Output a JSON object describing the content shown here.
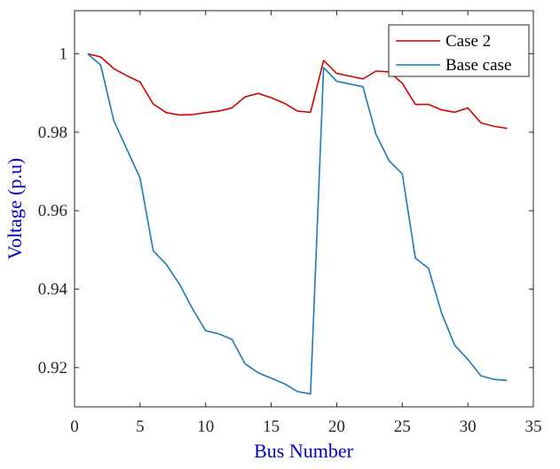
{
  "chart_data": {
    "type": "line",
    "xlabel": "Bus Number",
    "ylabel": "Voltage (p.u)",
    "xlim": [
      0,
      35
    ],
    "ylim": [
      0.91,
      1.011
    ],
    "xticks": [
      0,
      5,
      10,
      15,
      20,
      25,
      30,
      35
    ],
    "yticks": [
      0.92,
      0.94,
      0.96,
      0.98,
      1
    ],
    "ytick_labels": [
      "0.92",
      "0.94",
      "0.96",
      "0.98",
      "1"
    ],
    "grid": false,
    "legend_position": "top-right",
    "x": [
      1,
      2,
      3,
      4,
      5,
      6,
      7,
      8,
      9,
      10,
      11,
      12,
      13,
      14,
      15,
      16,
      17,
      18,
      19,
      20,
      21,
      22,
      23,
      24,
      25,
      26,
      27,
      28,
      29,
      30,
      31,
      32,
      33
    ],
    "series": [
      {
        "name": "Case 2",
        "color": "#d40000",
        "values": [
          1.0,
          0.9992,
          0.9962,
          0.9944,
          0.9928,
          0.9872,
          0.985,
          0.9844,
          0.9845,
          0.985,
          0.9854,
          0.9862,
          0.989,
          0.9899,
          0.9888,
          0.9874,
          0.9854,
          0.9851,
          0.9983,
          0.995,
          0.9943,
          0.9936,
          0.9956,
          0.9954,
          0.9925,
          0.9871,
          0.9871,
          0.9857,
          0.9851,
          0.9862,
          0.9824,
          0.9815,
          0.981
        ]
      },
      {
        "name": "Base case",
        "color": "#1a7bb5",
        "values": [
          1.0,
          0.9971,
          0.9829,
          0.9756,
          0.9683,
          0.9498,
          0.9463,
          0.9413,
          0.935,
          0.9294,
          0.9286,
          0.9272,
          0.921,
          0.9187,
          0.9173,
          0.9159,
          0.9139,
          0.9133,
          0.9965,
          0.993,
          0.9923,
          0.9916,
          0.9794,
          0.9727,
          0.9694,
          0.9479,
          0.9453,
          0.9339,
          0.9257,
          0.9221,
          0.9179,
          0.917,
          0.9167
        ]
      }
    ]
  }
}
